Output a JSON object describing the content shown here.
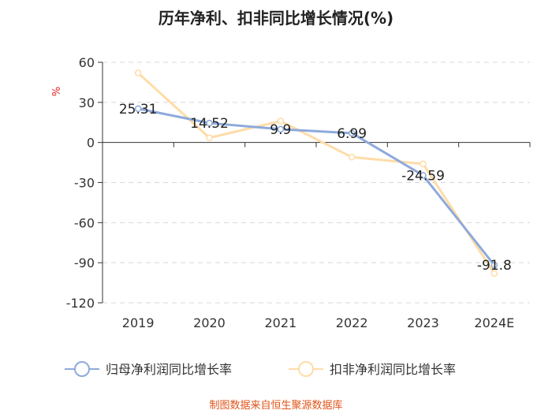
{
  "chart_data": {
    "type": "line",
    "title": "历年净利、扣非同比增长情况(%)",
    "ylabel": "%",
    "xlabel": "",
    "categories": [
      "2019",
      "2020",
      "2021",
      "2022",
      "2023",
      "2024E"
    ],
    "yticks": [
      60,
      30,
      0,
      -30,
      -60,
      -90,
      -120
    ],
    "ytick_labels": [
      "60",
      "30",
      "0",
      "-30",
      "-60",
      "-90",
      "-120"
    ],
    "ylim": [
      -120,
      60
    ],
    "grid": true,
    "series": [
      {
        "name": "归母净利润同比增长率",
        "values": [
          25.31,
          14.52,
          9.9,
          6.99,
          -24.59,
          -91.8
        ],
        "labels": [
          "25.31",
          "14.52",
          "9.9",
          "6.99",
          "-24.59",
          "-91.8"
        ],
        "color": "#8eaadb"
      },
      {
        "name": "扣非净利润同比增长率",
        "values": [
          52,
          3.5,
          16,
          -11,
          -16,
          -98
        ],
        "color": "#ffdca8"
      }
    ],
    "legend_position": "bottom"
  },
  "source": "制图数据来自恒生聚源数据库"
}
